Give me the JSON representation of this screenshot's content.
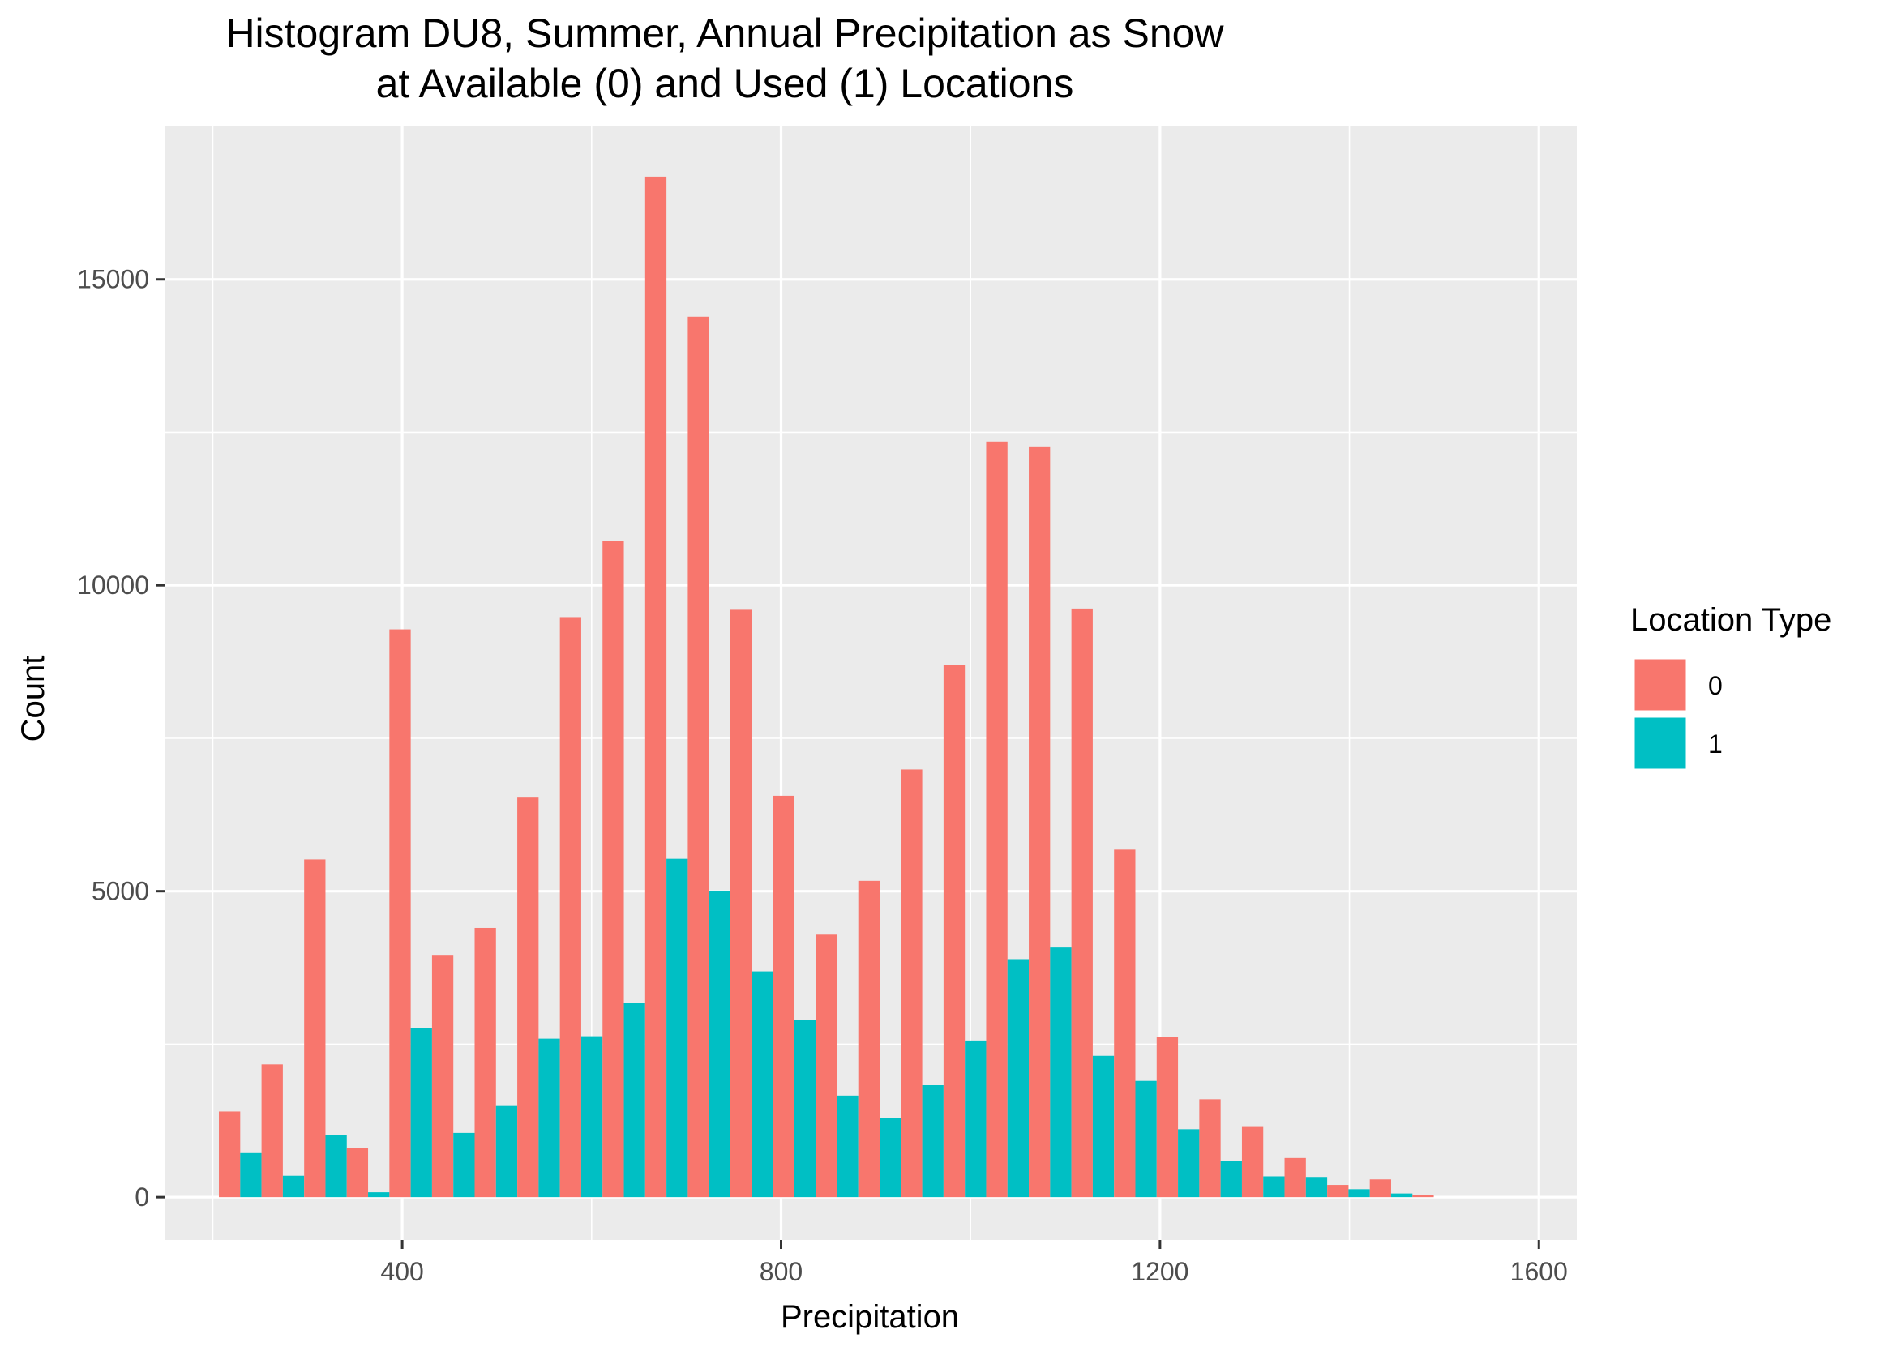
{
  "chart_data": {
    "type": "bar",
    "title": "Histogram DU8, Summer, Annual Precipitation as Snow",
    "subtitle": "at Available (0) and Used (1) Locations",
    "xlabel": "Precipitation",
    "ylabel": "Count",
    "xlim": [
      150,
      1640
    ],
    "ylim": [
      -700,
      17500
    ],
    "x_ticks": [
      400,
      800,
      1200,
      1600
    ],
    "y_ticks": [
      0,
      5000,
      10000,
      15000
    ],
    "x_tick_labels": [
      "400",
      "800",
      "1200",
      "1600"
    ],
    "y_tick_labels": [
      "0",
      "5000",
      "10000",
      "15000"
    ],
    "grid": true,
    "legend_position": "right",
    "legend_title": "Location Type",
    "bin_width": 45,
    "bin_centers": [
      229,
      274,
      319,
      364,
      409,
      454,
      499,
      544,
      589,
      634,
      679,
      724,
      769,
      814,
      859,
      904,
      949,
      994,
      1039,
      1084,
      1129,
      1174,
      1219,
      1264,
      1309,
      1354,
      1399,
      1444,
      1489,
      1534
    ],
    "series": [
      {
        "name": "0",
        "color": "#F8766D",
        "values": [
          1400,
          2170,
          5520,
          800,
          9280,
          3960,
          4400,
          6530,
          9480,
          10720,
          16680,
          14390,
          9600,
          6560,
          4290,
          5170,
          6990,
          8700,
          12350,
          12270,
          9620,
          5680,
          2620,
          1600,
          1160,
          640,
          200,
          290,
          30,
          0
        ]
      },
      {
        "name": "1",
        "color": "#00BFC4",
        "values": [
          720,
          350,
          1010,
          80,
          2770,
          1050,
          1490,
          2590,
          2630,
          3170,
          5530,
          5010,
          3690,
          2900,
          1660,
          1300,
          1830,
          2560,
          3890,
          4080,
          2310,
          1900,
          1110,
          590,
          340,
          330,
          130,
          60,
          0,
          0
        ]
      }
    ]
  }
}
